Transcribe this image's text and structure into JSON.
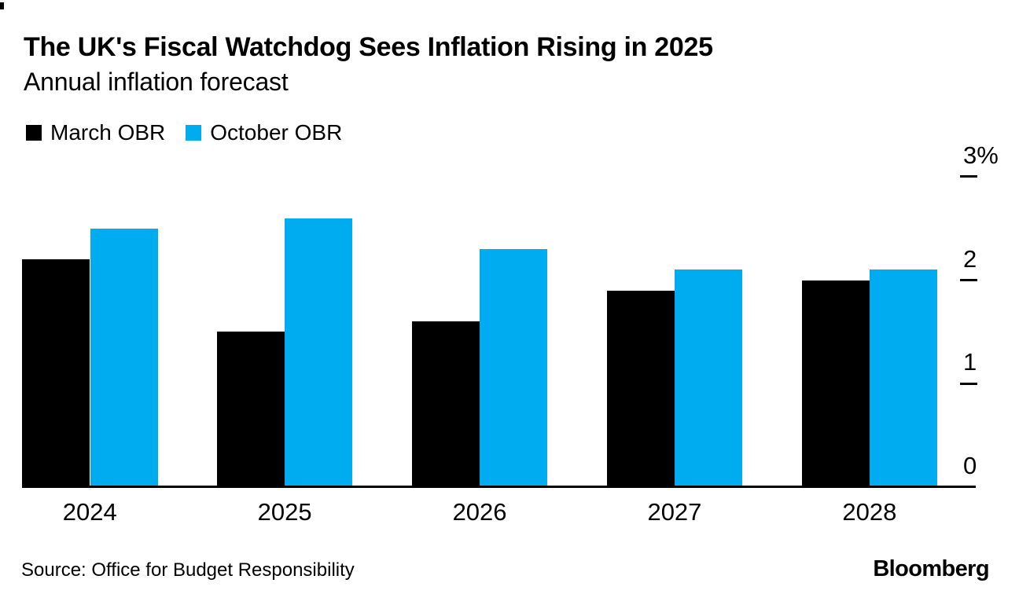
{
  "header": {
    "title": "The UK's Fiscal Watchdog Sees Inflation Rising in 2025",
    "subtitle": "Annual inflation forecast"
  },
  "legend": {
    "items": [
      {
        "label": "March OBR",
        "color": "#000000"
      },
      {
        "label": "October OBR",
        "color": "#00ACF0"
      }
    ]
  },
  "chart_data": {
    "type": "bar",
    "title": "The UK's Fiscal Watchdog Sees Inflation Rising in 2025",
    "subtitle": "Annual inflation forecast",
    "categories": [
      "2024",
      "2025",
      "2026",
      "2027",
      "2028"
    ],
    "series": [
      {
        "name": "March OBR",
        "color": "#000000",
        "values": [
          2.2,
          1.5,
          1.6,
          1.9,
          2.0
        ]
      },
      {
        "name": "October OBR",
        "color": "#00ACF0",
        "values": [
          2.5,
          2.6,
          2.3,
          2.1,
          2.1
        ]
      }
    ],
    "xlabel": "",
    "ylabel": "",
    "ylim": [
      0,
      3
    ],
    "y_ticks": [
      {
        "value": 3,
        "label": "3%"
      },
      {
        "value": 2,
        "label": "2"
      },
      {
        "value": 1,
        "label": "1"
      },
      {
        "value": 0,
        "label": "0"
      }
    ],
    "grid": false,
    "axis_side": "right",
    "legend_position": "top-left"
  },
  "footer": {
    "source": "Source: Office for Budget Responsibility",
    "brand": "Bloomberg"
  }
}
